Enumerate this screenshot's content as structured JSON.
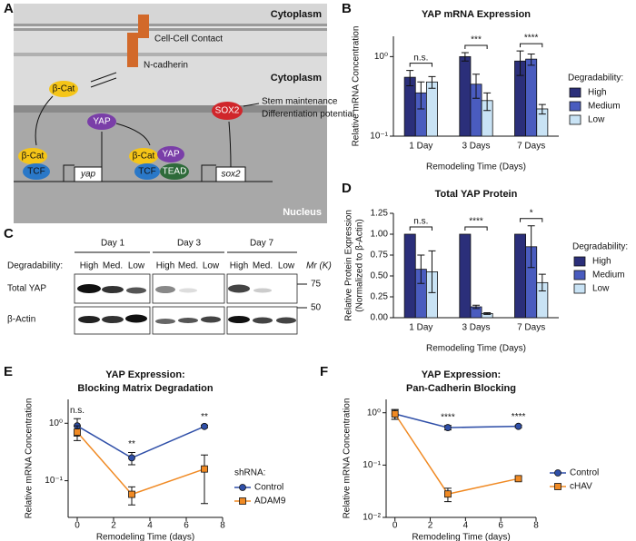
{
  "panel_labels": [
    "A",
    "B",
    "C",
    "D",
    "E",
    "F"
  ],
  "diagram": {
    "cytoplasm_top": "Cytoplasm",
    "contact": "Cell-Cell Contact",
    "ncadherin": "N-cadherin",
    "cytoplasm": "Cytoplasm",
    "bcat": "β-Cat",
    "yap": "YAP",
    "sox2": "SOX2",
    "outcome1": "Stem maintenance",
    "outcome2": "Differentiation potential",
    "complex1": [
      "β-Cat",
      "TCF"
    ],
    "gene1": "yap",
    "complex2": [
      "β-Cat",
      "YAP",
      "TCF",
      "TEAD"
    ],
    "gene2": "sox2",
    "nucleus": "Nucleus"
  },
  "blot": {
    "days": [
      "Day 1",
      "Day 3",
      "Day 7"
    ],
    "row_title": "Degradability:",
    "levels": [
      "High",
      "Med.",
      "Low"
    ],
    "rows": [
      "Total YAP",
      "β-Actin"
    ],
    "markers": [
      "75",
      "50"
    ],
    "marker_title": "Mr (K)"
  },
  "chart_data": [
    {
      "type": "bar",
      "title": "YAP mRNA Expression",
      "y_label": "Relative mRNA Concentration",
      "x_label": "Remodeling Time (Days)",
      "categories": [
        "1 Day",
        "3 Days",
        "7 Days"
      ],
      "log_y": true,
      "ylim": [
        0.1,
        1.8
      ],
      "yticks": [
        {
          "value": 0.1,
          "label": "10⁻¹"
        },
        {
          "value": 1,
          "label": "10⁰"
        }
      ],
      "legend_title": "Degradability:",
      "legend": "right",
      "series": [
        {
          "name": "High",
          "color": "#2b2f7a",
          "values": [
            0.55,
            1.0,
            0.88
          ],
          "errors": [
            0.12,
            0.12,
            0.3
          ]
        },
        {
          "name": "Medium",
          "color": "#4a5cbf",
          "values": [
            0.35,
            0.45,
            0.93
          ],
          "errors": [
            0.13,
            0.15,
            0.15
          ]
        },
        {
          "name": "Low",
          "color": "#c9e3f5",
          "values": [
            0.48,
            0.28,
            0.22
          ],
          "errors": [
            0.08,
            0.07,
            0.03
          ]
        }
      ],
      "annotations": [
        {
          "text": "n.s.",
          "category": "1 Day"
        },
        {
          "text": "***",
          "category": "3 Days"
        },
        {
          "text": "****",
          "category": "7 Days"
        }
      ]
    },
    {
      "type": "bar",
      "title": "Total YAP Protein",
      "y_label": [
        "Relative Protein Expression",
        "(Normalized to β-Actin)"
      ],
      "x_label": "Remodeling Time (Days)",
      "categories": [
        "1 Day",
        "3 Days",
        "7 Days"
      ],
      "ylim": [
        0,
        1.25
      ],
      "yticks": [
        {
          "value": 0,
          "label": "0.00"
        },
        {
          "value": 0.25,
          "label": "0.25"
        },
        {
          "value": 0.5,
          "label": "0.50"
        },
        {
          "value": 0.75,
          "label": "0.75"
        },
        {
          "value": 1,
          "label": "1.00"
        },
        {
          "value": 1.25,
          "label": "1.25"
        }
      ],
      "legend_title": "Degradability:",
      "legend": "right",
      "series": [
        {
          "name": "High",
          "color": "#2b2f7a",
          "values": [
            1.0,
            1.0,
            1.0
          ],
          "errors": [
            0,
            0,
            0
          ]
        },
        {
          "name": "Medium",
          "color": "#4a5cbf",
          "values": [
            0.58,
            0.13,
            0.85
          ],
          "errors": [
            0.17,
            0.02,
            0.25
          ]
        },
        {
          "name": "Low",
          "color": "#c9e3f5",
          "values": [
            0.55,
            0.05,
            0.42
          ],
          "errors": [
            0.25,
            0.01,
            0.1
          ]
        }
      ],
      "annotations": [
        {
          "text": "n.s.",
          "category": "1 Day"
        },
        {
          "text": "****",
          "category": "3 Days"
        },
        {
          "text": "*",
          "category": "7 Days"
        }
      ]
    },
    {
      "type": "line",
      "title": [
        "YAP Expression:",
        "Blocking Matrix Degradation"
      ],
      "y_label": "Relative mRNA Concentration",
      "x_label": "Remodeling Time (days)",
      "x": [
        0,
        3,
        7
      ],
      "xlim": [
        -0.5,
        8
      ],
      "xticks": [
        0,
        2,
        4,
        6,
        8
      ],
      "log_y": true,
      "ylim": [
        0.023,
        2.6
      ],
      "yticks": [
        {
          "value": 0.1,
          "label": "10⁻¹"
        },
        {
          "value": 1,
          "label": "10⁰"
        }
      ],
      "legend_title": "shRNA:",
      "legend": "right",
      "series": [
        {
          "name": "Control",
          "color": "#2f4fa8",
          "marker": "circle",
          "values": [
            0.9,
            0.25,
            0.88
          ],
          "errors": [
            0.3,
            0.06,
            0.05
          ]
        },
        {
          "name": "ADAM9",
          "color": "#f08a24",
          "marker": "square",
          "values": [
            0.7,
            0.058,
            0.16
          ],
          "errors": [
            0.2,
            0.02,
            0.12
          ]
        }
      ],
      "annotations": [
        {
          "text": "n.s.",
          "x": 0
        },
        {
          "text": "**",
          "x": 3
        },
        {
          "text": "**",
          "x": 7
        }
      ]
    },
    {
      "type": "line",
      "title": [
        "YAP Expression:",
        "Pan-Cadherin Blocking"
      ],
      "y_label": "Relative mRNA Concentration",
      "x_label": "Remodeling Time (days)",
      "x": [
        0,
        3,
        7
      ],
      "xlim": [
        -0.5,
        8
      ],
      "xticks": [
        0,
        2,
        4,
        6,
        8
      ],
      "log_y": true,
      "ylim": [
        0.01,
        1.8
      ],
      "yticks": [
        {
          "value": 0.01,
          "label": "10⁻²"
        },
        {
          "value": 0.1,
          "label": "10⁻¹"
        },
        {
          "value": 1,
          "label": "10⁰"
        }
      ],
      "legend": "right",
      "series": [
        {
          "name": "Control",
          "color": "#2f4fa8",
          "marker": "circle",
          "values": [
            0.95,
            0.52,
            0.55
          ],
          "errors": [
            0.2,
            0.05,
            0.03
          ]
        },
        {
          "name": "cHAV",
          "color": "#f08a24",
          "marker": "square",
          "values": [
            0.95,
            0.028,
            0.055
          ],
          "errors": [
            0.2,
            0.008,
            0.005
          ]
        }
      ],
      "annotations": [
        {
          "text": "****",
          "x": 3
        },
        {
          "text": "****",
          "x": 7
        }
      ]
    }
  ]
}
